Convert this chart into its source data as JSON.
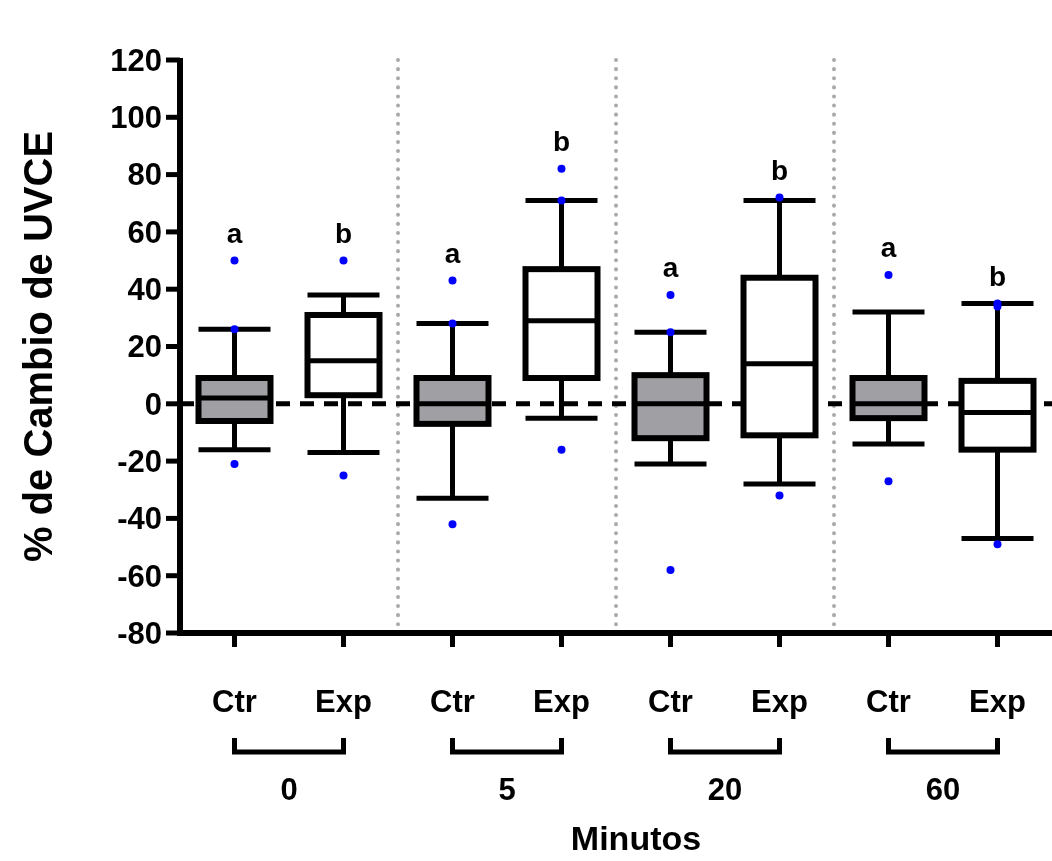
{
  "chart_data": {
    "type": "box",
    "ylabel": "% de Cambio de UVCE",
    "xlabel": "Minutos",
    "categories": [
      "Ctr",
      "Exp",
      "Ctr",
      "Exp",
      "Ctr",
      "Exp",
      "Ctr",
      "Exp"
    ],
    "ylim": [
      -80,
      120
    ],
    "yticks": [
      -80,
      -60,
      -40,
      -20,
      0,
      20,
      40,
      60,
      80,
      100,
      120
    ],
    "colors": [
      "#a0a0a4",
      "#ffffff",
      "#a0a0a4",
      "#ffffff",
      "#a0a0a4",
      "#ffffff",
      "#a0a0a4",
      "#ffffff"
    ],
    "boxes": [
      {
        "low": -16,
        "q1": -6,
        "median": 2,
        "q3": 9,
        "high": 26,
        "outliers": [
          50,
          26,
          -21
        ]
      },
      {
        "low": -17,
        "q1": 3,
        "median": 15,
        "q3": 31,
        "high": 38,
        "outliers": [
          50,
          -25
        ]
      },
      {
        "low": -33,
        "q1": -7,
        "median": 0,
        "q3": 9,
        "high": 28,
        "outliers": [
          43,
          28,
          -42
        ]
      },
      {
        "low": -5,
        "q1": 9,
        "median": 29,
        "q3": 47,
        "high": 71,
        "outliers": [
          82,
          71,
          -16
        ]
      },
      {
        "low": -21,
        "q1": -12,
        "median": 0,
        "q3": 10,
        "high": 25,
        "outliers": [
          38,
          25,
          -58
        ]
      },
      {
        "low": -28,
        "q1": -11,
        "median": 14,
        "q3": 44,
        "high": 71,
        "outliers": [
          72,
          -32
        ]
      },
      {
        "low": -14,
        "q1": -5,
        "median": 0,
        "q3": 9,
        "high": 32,
        "outliers": [
          45,
          -27
        ]
      },
      {
        "low": -47,
        "q1": -16,
        "median": -3,
        "q3": 8,
        "high": 35,
        "outliers": [
          35,
          34,
          -49
        ]
      }
    ],
    "ref_lines": [
      {
        "axis": "y",
        "value": 0,
        "line_style": "dashed",
        "color": "#000000"
      }
    ],
    "annotations": [
      "a",
      "b",
      "a",
      "b",
      "a",
      "b",
      "a",
      "b",
      "0",
      "5",
      "20",
      "60"
    ]
  }
}
